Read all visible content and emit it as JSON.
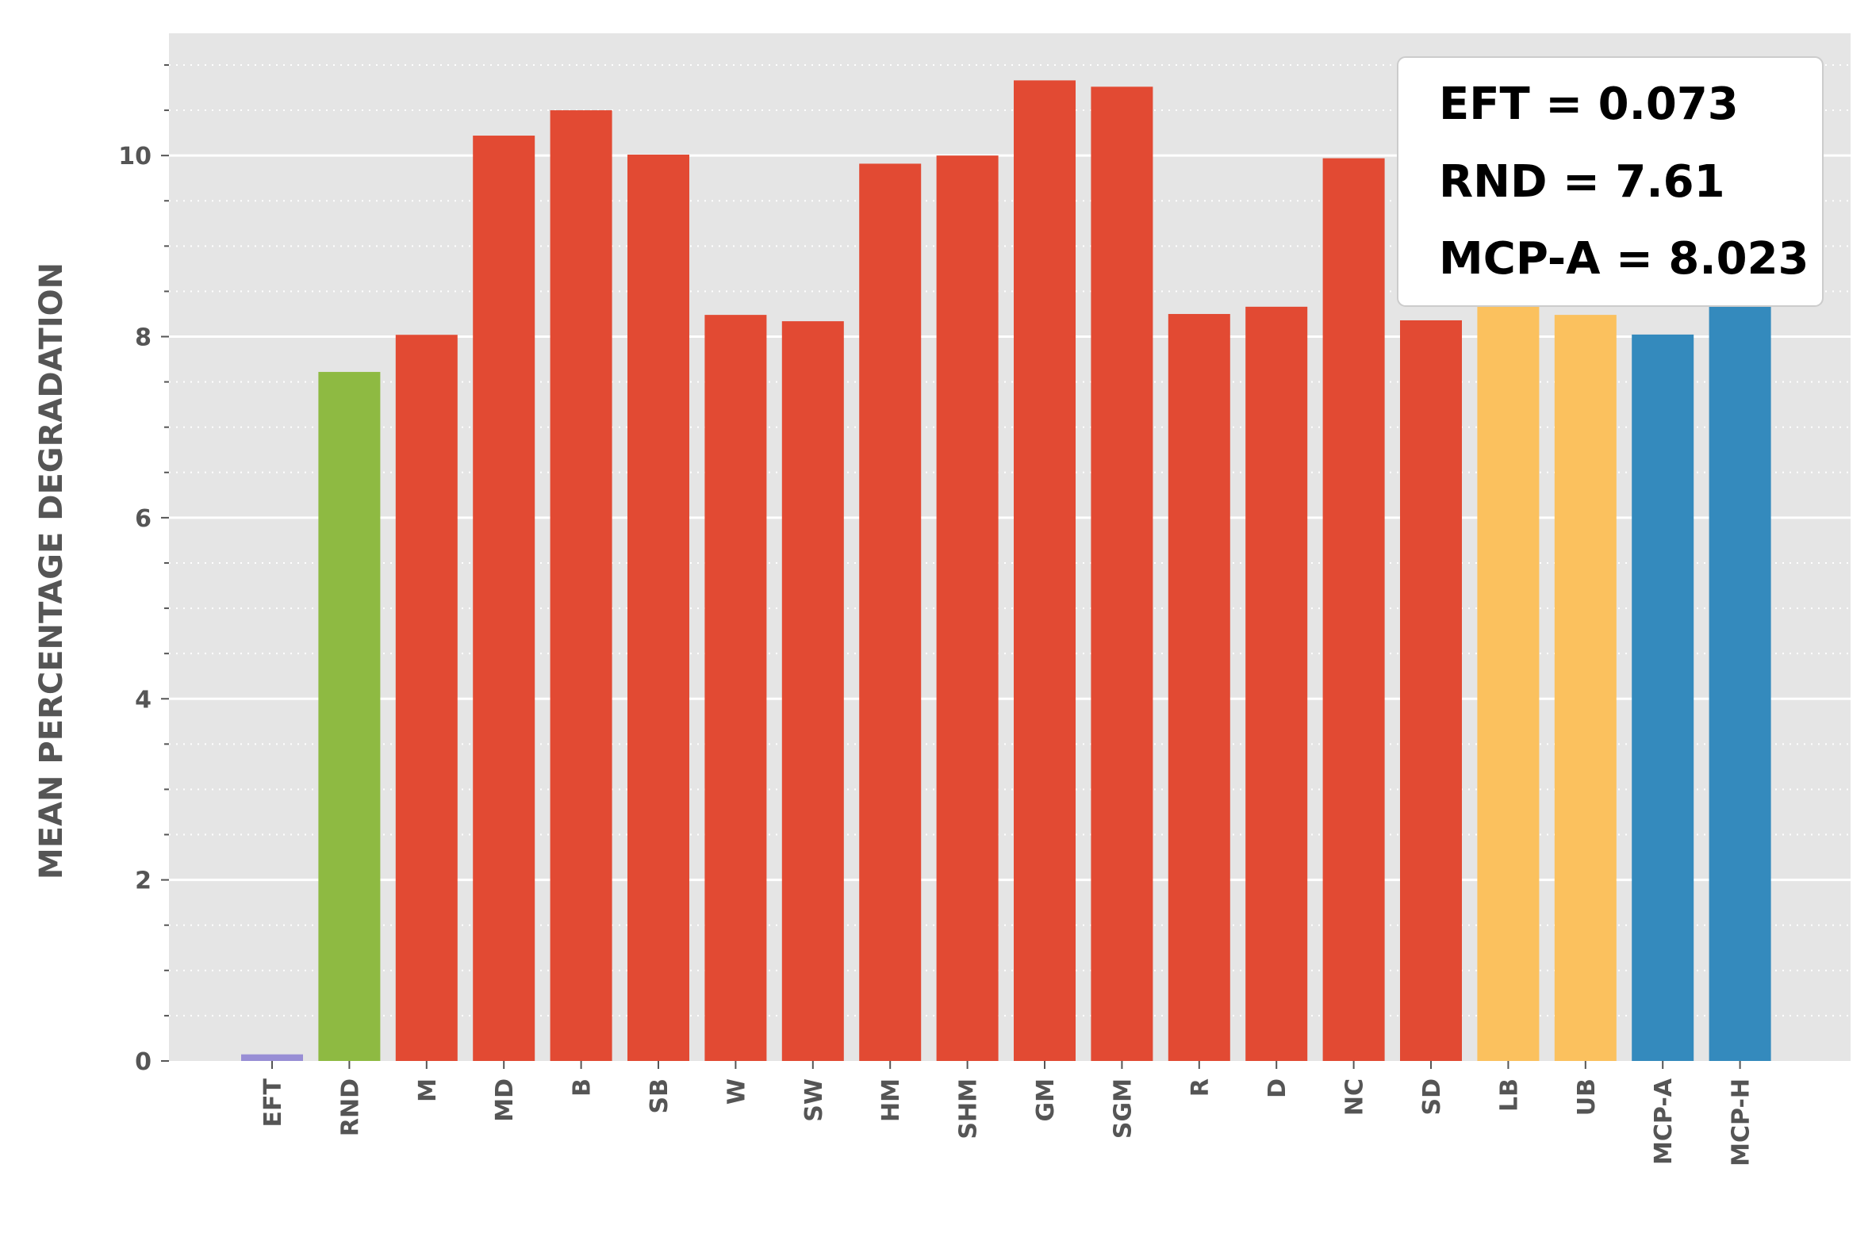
{
  "chart_data": {
    "type": "bar",
    "title": "",
    "xlabel": "",
    "ylabel": "MEAN PERCENTAGE DEGRADATION",
    "ylim": [
      0,
      11.35
    ],
    "yticks": [
      0,
      2,
      4,
      6,
      8,
      10
    ],
    "grid": true,
    "categories": [
      "EFT",
      "RND",
      "M",
      "MD",
      "B",
      "SB",
      "W",
      "SW",
      "HM",
      "SHM",
      "GM",
      "SGM",
      "R",
      "D",
      "NC",
      "SD",
      "LB",
      "UB",
      "MCP-A",
      "MCP-H"
    ],
    "values": [
      0.073,
      7.61,
      8.02,
      10.22,
      10.5,
      10.01,
      8.24,
      8.17,
      9.91,
      10.0,
      10.83,
      10.76,
      8.25,
      8.33,
      9.97,
      8.18,
      8.42,
      8.24,
      8.023,
      8.45
    ],
    "colors": [
      "#988ED5",
      "#8EBA42",
      "#E24A33",
      "#E24A33",
      "#E24A33",
      "#E24A33",
      "#E24A33",
      "#E24A33",
      "#E24A33",
      "#E24A33",
      "#E24A33",
      "#E24A33",
      "#E24A33",
      "#E24A33",
      "#E24A33",
      "#E24A33",
      "#FBC15E",
      "#FBC15E",
      "#348ABD",
      "#348ABD"
    ],
    "annotation": {
      "position": "top-right",
      "lines": [
        "EFT = 0.073",
        "RND = 7.61",
        "MCP-A = 8.023"
      ]
    }
  }
}
